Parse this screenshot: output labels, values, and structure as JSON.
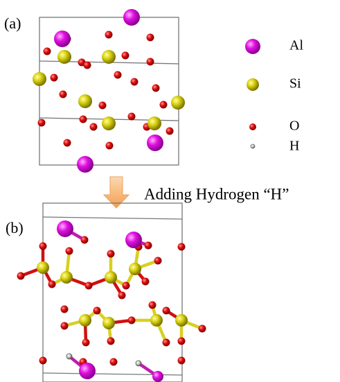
{
  "panels": [
    {
      "label": "(a)"
    },
    {
      "label": "(b)"
    }
  ],
  "legend": [
    {
      "label": "Al"
    },
    {
      "label": "Si"
    },
    {
      "label": "O"
    },
    {
      "label": "H"
    }
  ],
  "arrow_label": "Adding Hydrogen “H”"
}
